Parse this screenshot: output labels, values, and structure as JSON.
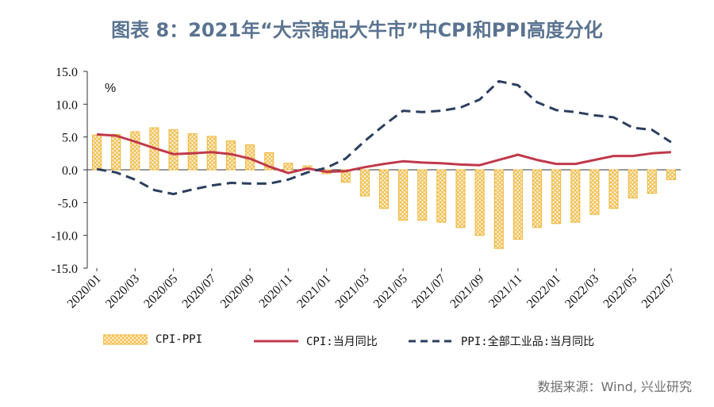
{
  "header": {
    "title": "图表 8：2021年“大宗商品大牛市”中CPI和PPI高度分化"
  },
  "chart_data": {
    "type": "bar+line",
    "unit_label": "%",
    "ylim": [
      -15,
      15
    ],
    "yticks": [
      "15.0",
      "10.0",
      "5.0",
      "0.0",
      "-5.0",
      "-10.0",
      "-15.0"
    ],
    "ytick_values": [
      15,
      10,
      5,
      0,
      -5,
      -10,
      -15
    ],
    "months": [
      "2020/01",
      "2020/02",
      "2020/03",
      "2020/04",
      "2020/05",
      "2020/06",
      "2020/07",
      "2020/08",
      "2020/09",
      "2020/10",
      "2020/11",
      "2020/12",
      "2021/01",
      "2021/02",
      "2021/03",
      "2021/04",
      "2021/05",
      "2021/06",
      "2021/07",
      "2021/08",
      "2021/09",
      "2021/10",
      "2021/11",
      "2021/12",
      "2022/01",
      "2022/02",
      "2022/03",
      "2022/04",
      "2022/05",
      "2022/06",
      "2022/07"
    ],
    "xtick_labels": [
      "2020/01",
      "2020/03",
      "2020/05",
      "2020/07",
      "2020/09",
      "2020/11",
      "2021/01",
      "2021/03",
      "2021/05",
      "2021/07",
      "2021/09",
      "2021/11",
      "2022/01",
      "2022/03",
      "2022/05",
      "2022/07"
    ],
    "series": [
      {
        "name": "CPI-PPI",
        "type": "bar",
        "color": "#f0b840",
        "values": [
          5.3,
          5.4,
          5.8,
          6.4,
          6.1,
          5.5,
          5.1,
          4.4,
          3.8,
          2.6,
          1.0,
          0.6,
          -0.6,
          -1.9,
          -4.0,
          -5.9,
          -7.7,
          -7.7,
          -8.0,
          -8.8,
          -10.0,
          -12.0,
          -10.6,
          -8.8,
          -8.2,
          -8.0,
          -6.8,
          -5.9,
          -4.3,
          -3.6,
          -1.5
        ]
      },
      {
        "name": "CPI:当月同比",
        "type": "line",
        "color": "#c0394a",
        "values": [
          5.4,
          5.2,
          4.3,
          3.3,
          2.4,
          2.5,
          2.7,
          2.4,
          1.7,
          0.5,
          -0.5,
          0.2,
          -0.3,
          -0.2,
          0.4,
          0.9,
          1.3,
          1.1,
          1.0,
          0.8,
          0.7,
          1.5,
          2.3,
          1.5,
          0.9,
          0.9,
          1.5,
          2.1,
          2.1,
          2.5,
          2.7
        ]
      },
      {
        "name": "PPI:全部工业品:当月同比",
        "type": "line",
        "dash": true,
        "color": "#2b3f5e",
        "values": [
          0.1,
          -0.4,
          -1.5,
          -3.1,
          -3.7,
          -3.0,
          -2.4,
          -2.0,
          -2.1,
          -2.1,
          -1.5,
          -0.4,
          0.3,
          1.7,
          4.4,
          6.8,
          9.0,
          8.8,
          9.0,
          9.5,
          10.7,
          13.5,
          12.9,
          10.3,
          9.1,
          8.8,
          8.3,
          8.0,
          6.4,
          6.1,
          4.2
        ]
      }
    ],
    "legend_placement": "bottom"
  },
  "legend": {
    "bar_label": "CPI-PPI",
    "cpi_label": "CPI:当月同比",
    "ppi_label": "PPI:全部工业品:当月同比"
  },
  "footer": {
    "source": "数据来源：Wind, 兴业研究"
  }
}
